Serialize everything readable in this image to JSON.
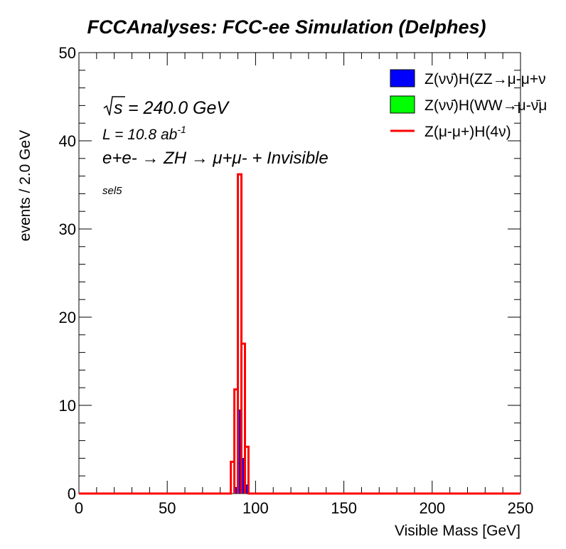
{
  "chart_data": {
    "type": "histogram",
    "title": "FCCAnalyses: FCC-ee Simulation (Delphes)",
    "xlabel": "Visible Mass [GeV]",
    "ylabel": "events / 2.0 GeV",
    "xlim": [
      0,
      250
    ],
    "ylim": [
      0,
      50
    ],
    "bin_width": 2.0,
    "x_ticks": [
      0,
      50,
      100,
      150,
      200,
      250
    ],
    "y_ticks": [
      0,
      10,
      20,
      30,
      40,
      50
    ],
    "legend_placement": "top-right",
    "annotations": {
      "sqrt_s": "= 240.0 GeV",
      "lumi": "L = 10.8 ab",
      "lumi_exp": "-1",
      "process": "e+e- → ZH → μ+μ- + Invisible",
      "selection": "sel5"
    },
    "series": [
      {
        "name": "Z(νν̄)H(ZZ→μ-μ+ν",
        "style": "filled",
        "color": "#0000ff",
        "bins": [
          {
            "x": 88,
            "y": 0.7
          },
          {
            "x": 90,
            "y": 9.5
          },
          {
            "x": 92,
            "y": 4.0
          },
          {
            "x": 94,
            "y": 1.0
          }
        ]
      },
      {
        "name": "Z(νν̄)H(WW→μ-ν̄μ",
        "style": "filled",
        "color": "#00ff00",
        "bins": []
      },
      {
        "name": "Z(μ-μ+)H(4ν)",
        "style": "line",
        "color": "#ff0000",
        "bins": [
          {
            "x": 86,
            "y": 3.6
          },
          {
            "x": 88,
            "y": 11.8
          },
          {
            "x": 90,
            "y": 36.2
          },
          {
            "x": 92,
            "y": 17.0
          },
          {
            "x": 94,
            "y": 5.3
          }
        ]
      }
    ]
  }
}
